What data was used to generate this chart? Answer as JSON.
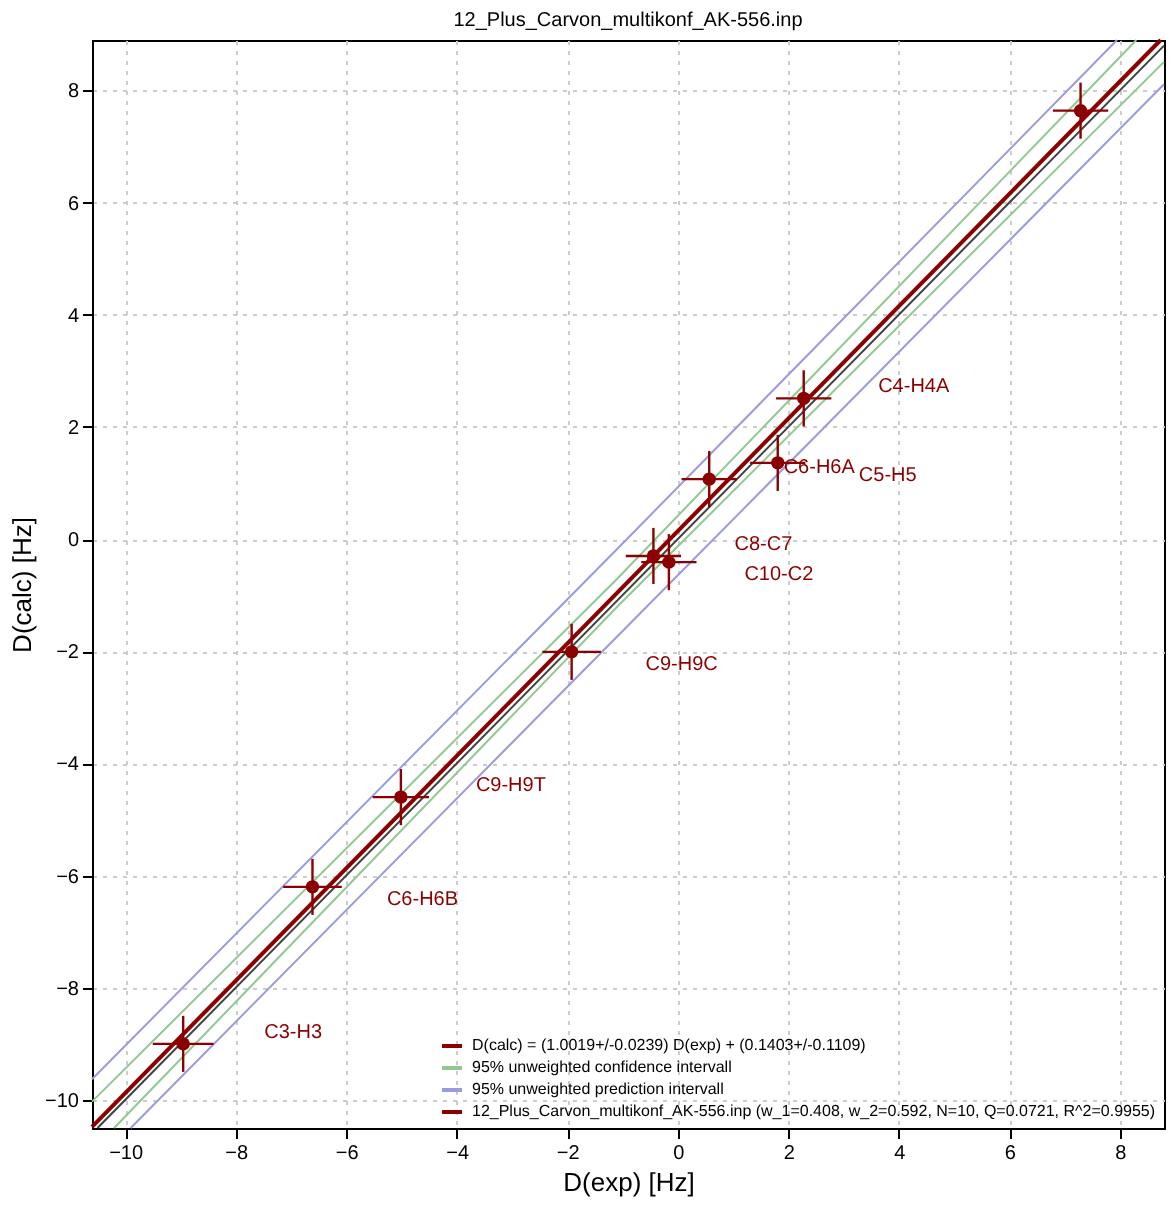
{
  "chart_data": {
    "type": "scatter",
    "title": "12_Plus_Carvon_multikonf_AK-556.inp",
    "xlabel": "D(exp) [Hz]",
    "ylabel": "D(calc) [Hz]",
    "xlim": [
      -10.6,
      8.8
    ],
    "ylim": [
      -10.5,
      8.9
    ],
    "xticks": [
      -10,
      -8,
      -6,
      -4,
      -2,
      0,
      2,
      4,
      6,
      8
    ],
    "yticks": [
      -10,
      -8,
      -6,
      -4,
      -2,
      0,
      2,
      4,
      6,
      8
    ],
    "grid": true,
    "legend": "bottom right",
    "line_style": "solid",
    "series": [
      {
        "type": "line",
        "color": "#404040",
        "x": [
          -10.5,
          8.8
        ],
        "values": [
          -10.5,
          8.8
        ]
      },
      {
        "type": "line",
        "name": "D(calc) = (1.0019+/-0.0239) D(exp) + (0.1403+/-0.1109)",
        "color": "#8b0000",
        "x": [
          -10.6,
          8.74
        ],
        "values": [
          -10.48,
          8.9
        ]
      },
      {
        "type": "line",
        "name": "95% unweighted confidence intervall",
        "color": "#90c890",
        "x": [
          -10.6,
          -1.1,
          8.3
        ],
        "values": [
          -10.03,
          -0.71,
          8.9
        ]
      },
      {
        "type": "line",
        "color": "#90c890",
        "x": [
          -10.2,
          -1.1,
          8.8
        ],
        "values": [
          -10.5,
          -1.21,
          8.51
        ]
      },
      {
        "type": "line",
        "name": "95% unweighted prediction intervall",
        "color": "#9a9ae0",
        "x": [
          -10.6,
          -1.1,
          7.95
        ],
        "values": [
          -9.63,
          -0.18,
          8.9
        ]
      },
      {
        "type": "line",
        "color": "#9a9ae0",
        "x": [
          -9.9,
          -1.1,
          8.8
        ],
        "values": [
          -10.5,
          -1.74,
          8.11
        ]
      },
      {
        "type": "scatter",
        "name": "12_Plus_Carvon_multikonf_AK-556.inp (w_1=0.408, w_2=0.592, N=10, Q=0.0721, R^2=0.9955)",
        "color": "#8b0000",
        "marker": "circle",
        "x": [
          -8.95,
          -6.61,
          -5.01,
          -1.92,
          -0.44,
          -0.16,
          0.57,
          1.81,
          2.28,
          7.29
        ],
        "values": [
          -9.0,
          -6.2,
          -4.6,
          -2.01,
          -0.3,
          -0.41,
          1.07,
          1.36,
          2.51,
          7.64
        ],
        "errors": [
          0.5,
          0.5,
          0.5,
          0.5,
          0.5,
          0.5,
          0.5,
          0.5,
          0.5,
          0.5
        ],
        "xerrors": [
          0.55,
          0.53,
          0.51,
          0.53,
          0.5,
          0.5,
          0.5,
          0.5,
          0.5,
          0.5
        ]
      }
    ],
    "annotations": [
      "C3-H3",
      "C6-H6B",
      "C9-H9T",
      "C9-H9C",
      "C8-C7",
      "C10-C2",
      "C6-H6A",
      "C5-H5",
      "C4-H4A"
    ]
  }
}
